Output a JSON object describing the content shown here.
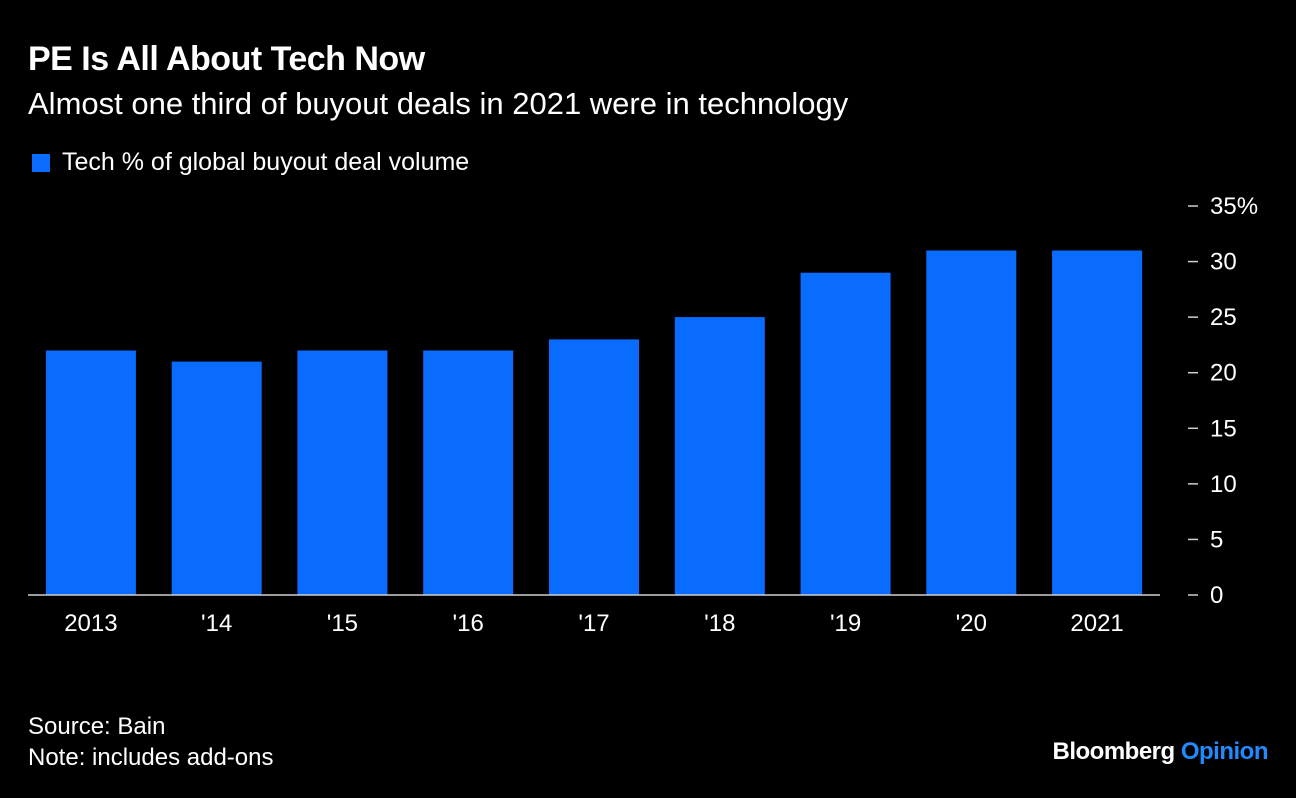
{
  "title": "PE Is All About Tech Now",
  "subtitle": "Almost one third of buyout deals in 2021 were in technology",
  "footer": {
    "source": "Source: Bain",
    "note": "Note: includes add-ons"
  },
  "brand": {
    "name": "Bloomberg",
    "section": "Opinion"
  },
  "colors": {
    "background": "#000000",
    "bar": "#0a6cff",
    "text": "#ffffff",
    "axis": "#cfcfcf",
    "brand_accent": "#1f8bff"
  },
  "chart_data": {
    "type": "bar",
    "categories": [
      "2013",
      "'14",
      "'15",
      "'16",
      "'17",
      "'18",
      "'19",
      "'20",
      "2021"
    ],
    "series": [
      {
        "name": "Tech % of global buyout deal volume",
        "values": [
          22,
          21,
          22,
          22,
          23,
          25,
          29,
          31,
          31
        ]
      }
    ],
    "ylim": [
      0,
      35
    ],
    "yticks": [
      0,
      5,
      10,
      15,
      20,
      25,
      30,
      35
    ],
    "ytick_labels": [
      "0",
      "5",
      "10",
      "15",
      "20",
      "25",
      "30",
      "35%"
    ],
    "y_axis_side": "right",
    "grid": false,
    "legend_position": "top-left"
  }
}
